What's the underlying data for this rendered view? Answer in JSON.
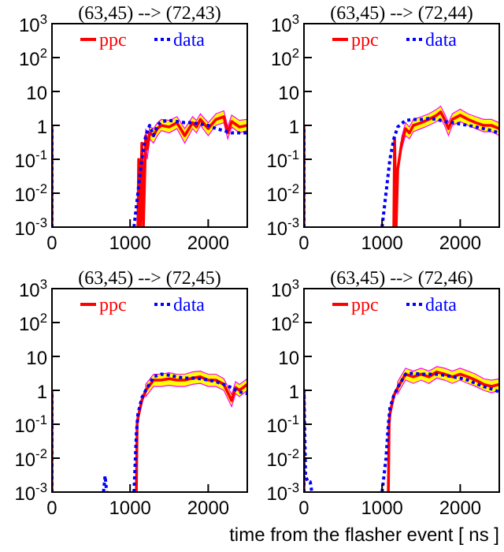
{
  "chart_data": [
    {
      "type": "line",
      "title": "(63,45) --> (72,43)",
      "xlim": [
        0,
        2500
      ],
      "xticks": [
        0,
        1000,
        2000
      ],
      "ylim": [
        0.001,
        1000
      ],
      "yticks": [
        {
          "value": 1000,
          "label": "10$^{3}$"
        },
        {
          "value": 100,
          "label": "10$^{2}$"
        },
        {
          "value": 10,
          "label": "10"
        },
        {
          "value": 1,
          "label": "1"
        },
        {
          "value": 0.1,
          "label": "10$^{-1}$"
        },
        {
          "value": 0.01,
          "label": "10$^{-2}$"
        },
        {
          "value": 0.001,
          "label": "10$^{-3}$"
        }
      ],
      "log": true,
      "legend": "top",
      "marker": "none",
      "series": [
        {
          "name": "ppc",
          "color": "#ff0000",
          "line_style": "solid",
          "x": [
            0,
            0,
            50,
            1100,
            1110,
            1130,
            1150,
            1170,
            1200,
            1220,
            1250,
            1300,
            1350,
            1400,
            1500,
            1600,
            1700,
            1800,
            1850,
            1900,
            2000,
            2100,
            2200,
            2250,
            2300,
            2400,
            2500
          ],
          "values": [
            0.001,
            1,
            null,
            0.001,
            0.1,
            0.001,
            0.3,
            0.001,
            0.5,
            0.2,
            0.6,
            0.5,
            0.8,
            1,
            0.9,
            1.2,
            0.5,
            1.2,
            0.9,
            1.5,
            0.8,
            1.5,
            1.8,
            0.6,
            1.3,
            0.9,
            1
          ],
          "upper": [
            null,
            null,
            null,
            null,
            null,
            null,
            null,
            null,
            0.8,
            0.3,
            0.9,
            0.8,
            1.2,
            1.5,
            1.4,
            1.8,
            0.8,
            1.8,
            1.4,
            2.2,
            1.2,
            2.2,
            2.7,
            0.9,
            2,
            1.4,
            1.5
          ],
          "lower": [
            null,
            null,
            null,
            null,
            null,
            null,
            null,
            null,
            0.3,
            0.1,
            0.4,
            0.3,
            0.5,
            0.7,
            0.6,
            0.8,
            0.3,
            0.8,
            0.6,
            1,
            0.5,
            1,
            1.2,
            0.4,
            0.9,
            0.6,
            0.7
          ]
        },
        {
          "name": "data",
          "color": "#0000ff",
          "line_style": "dotted",
          "x": [
            0,
            0,
            50,
            1050,
            1100,
            1150,
            1200,
            1250,
            1300,
            1350,
            1400,
            1500,
            1600,
            1700,
            1800,
            1900,
            2000,
            2100,
            2200,
            2300,
            2400,
            2500
          ],
          "values": [
            0.001,
            1,
            null,
            0.001,
            0.01,
            0.1,
            0.5,
            1,
            0.5,
            1,
            1.3,
            1.4,
            1.3,
            1.2,
            1.2,
            1.1,
            1,
            0.8,
            0.7,
            0.6,
            0.6,
            0.6
          ]
        }
      ]
    },
    {
      "type": "line",
      "title": "(63,45) --> (72,44)",
      "xlim": [
        0,
        2500
      ],
      "xticks": [
        0,
        1000,
        2000
      ],
      "ylim": [
        0.001,
        1000
      ],
      "yticks": [
        {
          "value": 1000,
          "label": "10$^{3}$"
        },
        {
          "value": 100,
          "label": "10$^{2}$"
        },
        {
          "value": 10,
          "label": "10"
        },
        {
          "value": 1,
          "label": "1"
        },
        {
          "value": 0.1,
          "label": "10$^{-1}$"
        },
        {
          "value": 0.01,
          "label": "10$^{-2}$"
        },
        {
          "value": 0.001,
          "label": "10$^{-3}$"
        }
      ],
      "log": true,
      "legend": "top",
      "marker": "none",
      "series": [
        {
          "name": "ppc",
          "color": "#ff0000",
          "line_style": "solid",
          "x": [
            0,
            0,
            50,
            1150,
            1160,
            1180,
            1200,
            1250,
            1300,
            1350,
            1400,
            1500,
            1600,
            1700,
            1750,
            1800,
            1850,
            1900,
            2000,
            2100,
            2200,
            2300,
            2400,
            2500
          ],
          "values": [
            0.001,
            1,
            null,
            0.001,
            0.4,
            0.001,
            0.05,
            0.3,
            0.8,
            0.6,
            1,
            1.2,
            1.5,
            2,
            2.5,
            1.5,
            0.8,
            1.5,
            2,
            1.5,
            1.2,
            1,
            1,
            0.8
          ],
          "upper": [
            null,
            null,
            null,
            null,
            null,
            null,
            null,
            0.45,
            1.2,
            0.9,
            1.5,
            1.8,
            2.2,
            3,
            3.7,
            2.2,
            1.2,
            2.2,
            3,
            2.2,
            1.8,
            1.5,
            1.5,
            1.2
          ],
          "lower": [
            null,
            null,
            null,
            null,
            null,
            null,
            null,
            0.2,
            0.5,
            0.4,
            0.65,
            0.8,
            1,
            1.3,
            1.6,
            1,
            0.5,
            1,
            1.3,
            1,
            0.8,
            0.65,
            0.65,
            0.5
          ]
        },
        {
          "name": "data",
          "color": "#0000ff",
          "line_style": "dotted",
          "x": [
            0,
            0,
            50,
            1000,
            1050,
            1100,
            1150,
            1200,
            1300,
            1400,
            1500,
            1600,
            1700,
            1800,
            1900,
            2000,
            2100,
            2200,
            2300,
            2400,
            2500
          ],
          "values": [
            0.001,
            1,
            null,
            0.001,
            0.01,
            0.1,
            0.4,
            0.9,
            1.4,
            1.5,
            1.5,
            1.6,
            1.5,
            1.3,
            1.2,
            1.1,
            1,
            0.9,
            0.8,
            0.7,
            0.6
          ]
        }
      ]
    },
    {
      "type": "line",
      "title": "(63,45) --> (72,45)",
      "xlim": [
        0,
        2500
      ],
      "xticks": [
        0,
        1000,
        2000
      ],
      "ylim": [
        0.001,
        1000
      ],
      "yticks": [
        {
          "value": 1000,
          "label": "10$^{3}$"
        },
        {
          "value": 100,
          "label": "10$^{2}$"
        },
        {
          "value": 10,
          "label": "10"
        },
        {
          "value": 1,
          "label": "1"
        },
        {
          "value": 0.1,
          "label": "10$^{-1}$"
        },
        {
          "value": 0.01,
          "label": "10$^{-2}$"
        },
        {
          "value": 0.001,
          "label": "10$^{-3}$"
        }
      ],
      "log": true,
      "legend": "top",
      "marker": "none",
      "series": [
        {
          "name": "ppc",
          "color": "#ff0000",
          "line_style": "solid",
          "x": [
            0,
            0,
            50,
            1080,
            1090,
            1100,
            1150,
            1200,
            1300,
            1400,
            1500,
            1600,
            1700,
            1800,
            1900,
            2000,
            2100,
            2200,
            2300,
            2350,
            2400,
            2500
          ],
          "values": [
            0.001,
            1,
            null,
            0.001,
            0.1,
            0.15,
            0.5,
            1,
            2,
            2,
            2.2,
            2,
            2,
            2.3,
            2.5,
            2,
            2,
            1.5,
            0.5,
            1.2,
            1,
            1.5
          ],
          "upper": [
            null,
            null,
            null,
            null,
            null,
            null,
            null,
            1.5,
            3,
            3,
            3.3,
            3,
            3,
            3.5,
            3.7,
            3,
            3,
            2.2,
            0.75,
            1.8,
            1.5,
            2.2
          ],
          "lower": [
            null,
            null,
            null,
            null,
            null,
            null,
            null,
            0.65,
            1.3,
            1.3,
            1.4,
            1.3,
            1.3,
            1.5,
            1.6,
            1.3,
            1.3,
            1,
            0.33,
            0.8,
            0.65,
            1
          ]
        },
        {
          "name": "data",
          "color": "#0000ff",
          "line_style": "dotted",
          "x": [
            0,
            0,
            50,
            660,
            680,
            700,
            710,
            1050,
            1080,
            1100,
            1150,
            1200,
            1300,
            1400,
            1500,
            1600,
            1700,
            1800,
            1900,
            2000,
            2100,
            2200,
            2300,
            2400,
            2500
          ],
          "values": [
            0.001,
            1,
            null,
            0.001,
            0.003,
            0.001,
            null,
            0.001,
            0.05,
            0.2,
            0.6,
            1,
            2.5,
            3,
            2.8,
            2.5,
            2.3,
            2.3,
            2.2,
            2,
            1.8,
            1.5,
            1.2,
            0.9,
            0.8
          ]
        }
      ]
    },
    {
      "type": "line",
      "title": "(63,45) --> (72,46)",
      "xlabel": "time from the flasher event [ ns ]",
      "xlim": [
        0,
        2500
      ],
      "xticks": [
        0,
        1000,
        2000
      ],
      "ylim": [
        0.001,
        1000
      ],
      "yticks": [
        {
          "value": 1000,
          "label": "10$^{3}$"
        },
        {
          "value": 100,
          "label": "10$^{2}$"
        },
        {
          "value": 10,
          "label": "10"
        },
        {
          "value": 1,
          "label": "1"
        },
        {
          "value": 0.1,
          "label": "10$^{-1}$"
        },
        {
          "value": 0.01,
          "label": "10$^{-2}$"
        },
        {
          "value": 0.001,
          "label": "10$^{-3}$"
        }
      ],
      "log": true,
      "legend": "top",
      "marker": "none",
      "series": [
        {
          "name": "ppc",
          "color": "#ff0000",
          "line_style": "solid",
          "x": [
            0,
            0,
            50,
            1080,
            1090,
            1100,
            1150,
            1200,
            1300,
            1400,
            1500,
            1600,
            1700,
            1800,
            1900,
            2000,
            2100,
            2200,
            2300,
            2400,
            2500
          ],
          "values": [
            0.001,
            1,
            null,
            0.001,
            0.1,
            0.2,
            0.7,
            1.2,
            3,
            2.5,
            3,
            2.5,
            3.5,
            3,
            2.5,
            3,
            2.5,
            2,
            1.5,
            1.3,
            1.5
          ],
          "upper": [
            null,
            null,
            null,
            null,
            null,
            null,
            null,
            1.8,
            4.5,
            3.7,
            4.5,
            3.7,
            5,
            4.5,
            3.7,
            4.5,
            3.7,
            3,
            2.2,
            2,
            2.2
          ],
          "lower": [
            null,
            null,
            null,
            null,
            null,
            null,
            null,
            0.8,
            2,
            1.6,
            2,
            1.6,
            2.3,
            2,
            1.6,
            2,
            1.6,
            1.3,
            1,
            0.85,
            1
          ]
        },
        {
          "name": "data",
          "color": "#0000ff",
          "line_style": "dotted",
          "x": [
            0,
            0,
            20,
            50,
            80,
            100,
            120,
            1000,
            1050,
            1080,
            1100,
            1150,
            1200,
            1300,
            1400,
            1500,
            1600,
            1700,
            1800,
            1900,
            2000,
            2100,
            2200,
            2300,
            2400,
            2500
          ],
          "values": [
            0.001,
            1,
            0.003,
            0.002,
            0.002,
            0.001,
            null,
            0.001,
            0.01,
            0.1,
            0.3,
            0.7,
            1.2,
            3,
            3.2,
            3,
            3,
            3,
            2.8,
            2.5,
            2.3,
            2,
            1.6,
            1.3,
            1.1,
            0.9
          ]
        }
      ]
    }
  ]
}
